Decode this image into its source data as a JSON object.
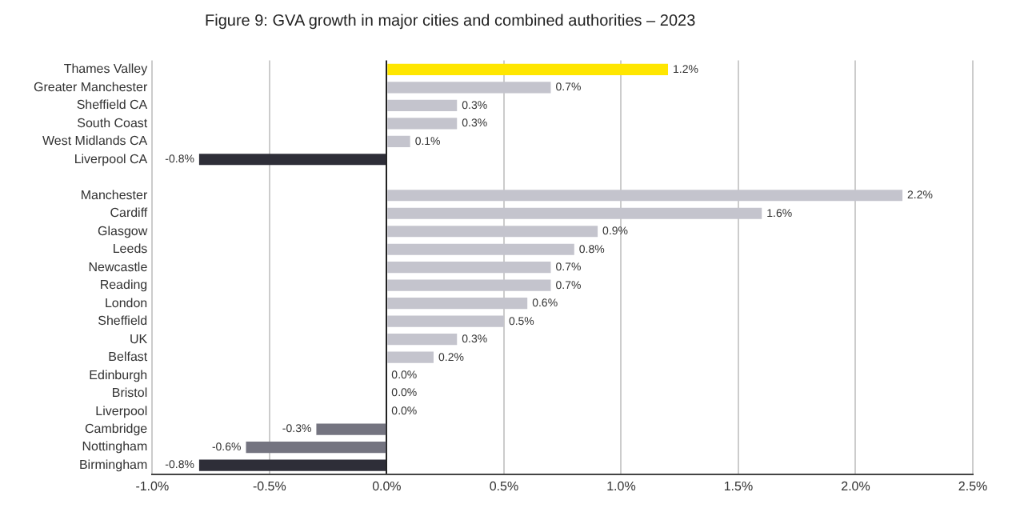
{
  "chart_data": {
    "type": "bar",
    "orientation": "horizontal",
    "title": "Figure 9: GVA growth in major cities and combined authorities – 2023",
    "categories": [
      "Thames Valley",
      "Greater Manchester",
      "Sheffield CA",
      "South Coast",
      "West Midlands CA",
      "Liverpool CA",
      null,
      "Manchester",
      "Cardiff",
      "Glasgow",
      "Leeds",
      "Newcastle",
      "Reading",
      "London",
      "Sheffield",
      "UK",
      "Belfast",
      "Edinburgh",
      "Bristol",
      "Liverpool",
      "Cambridge",
      "Nottingham",
      "Birmingham"
    ],
    "values": [
      1.2,
      0.7,
      0.3,
      0.3,
      0.1,
      -0.8,
      null,
      2.2,
      1.6,
      0.9,
      0.8,
      0.7,
      0.7,
      0.6,
      0.5,
      0.3,
      0.2,
      0.0,
      0.0,
      0.0,
      -0.3,
      -0.6,
      -0.8
    ],
    "colors": [
      "#ffe600",
      "#c4c4cd",
      "#c4c4cd",
      "#c4c4cd",
      "#c4c4cd",
      "#2e2e38",
      null,
      "#c4c4cd",
      "#c4c4cd",
      "#c4c4cd",
      "#c4c4cd",
      "#c4c4cd",
      "#c4c4cd",
      "#c4c4cd",
      "#c4c4cd",
      "#c4c4cd",
      "#c4c4cd",
      "#c4c4cd",
      "#c4c4cd",
      "#c4c4cd",
      "#747480",
      "#747480",
      "#2e2e38"
    ],
    "value_labels": [
      "1.2%",
      "0.7%",
      "0.3%",
      "0.3%",
      "0.1%",
      "-0.8%",
      null,
      "2.2%",
      "1.6%",
      "0.9%",
      "0.8%",
      "0.7%",
      "0.7%",
      "0.6%",
      "0.5%",
      "0.3%",
      "0.2%",
      "0.0%",
      "0.0%",
      "0.0%",
      "-0.3%",
      "-0.6%",
      "-0.8%"
    ],
    "xlim": [
      -1.0,
      2.5
    ],
    "xticks": [
      {
        "value": -1.0,
        "label": "-1.0%"
      },
      {
        "value": -0.5,
        "label": "-0.5%"
      },
      {
        "value": 0,
        "label": "0.0%"
      },
      {
        "value": 0.5,
        "label": "0.5%"
      },
      {
        "value": 1.0,
        "label": "1.0%"
      },
      {
        "value": 1.5,
        "label": "1.5%"
      },
      {
        "value": 2.0,
        "label": "2.0%"
      },
      {
        "value": 2.5,
        "label": "2.5%"
      }
    ],
    "grid": "x",
    "legend": false
  }
}
